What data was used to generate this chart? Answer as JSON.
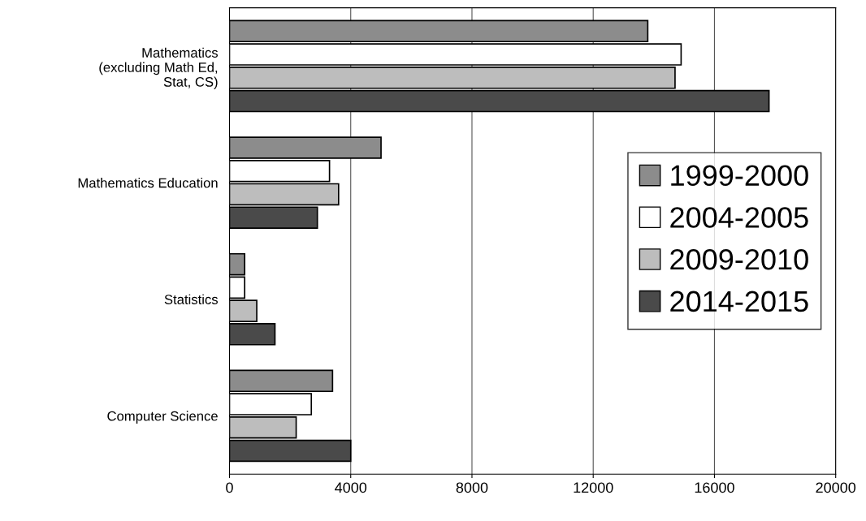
{
  "chart_data": {
    "type": "bar",
    "orientation": "horizontal",
    "categories": [
      "Mathematics\n(excluding Math Ed,\nStat, CS)",
      "Mathematics Education",
      "Statistics",
      "Computer Science"
    ],
    "series": [
      {
        "name": "1999-2000",
        "color": "#8c8c8c",
        "values": [
          13800,
          5000,
          500,
          3400
        ]
      },
      {
        "name": "2004-2005",
        "color": "#ffffff",
        "values": [
          14900,
          3300,
          500,
          2700
        ]
      },
      {
        "name": "2009-2010",
        "color": "#bdbdbd",
        "values": [
          14700,
          3600,
          900,
          2200
        ]
      },
      {
        "name": "2014-2015",
        "color": "#4a4a4a",
        "values": [
          17800,
          2900,
          1500,
          4000
        ]
      }
    ],
    "xlim": [
      0,
      20000
    ],
    "xticks": [
      0,
      4000,
      8000,
      12000,
      16000,
      20000
    ],
    "grid": "x",
    "legend": "right"
  }
}
